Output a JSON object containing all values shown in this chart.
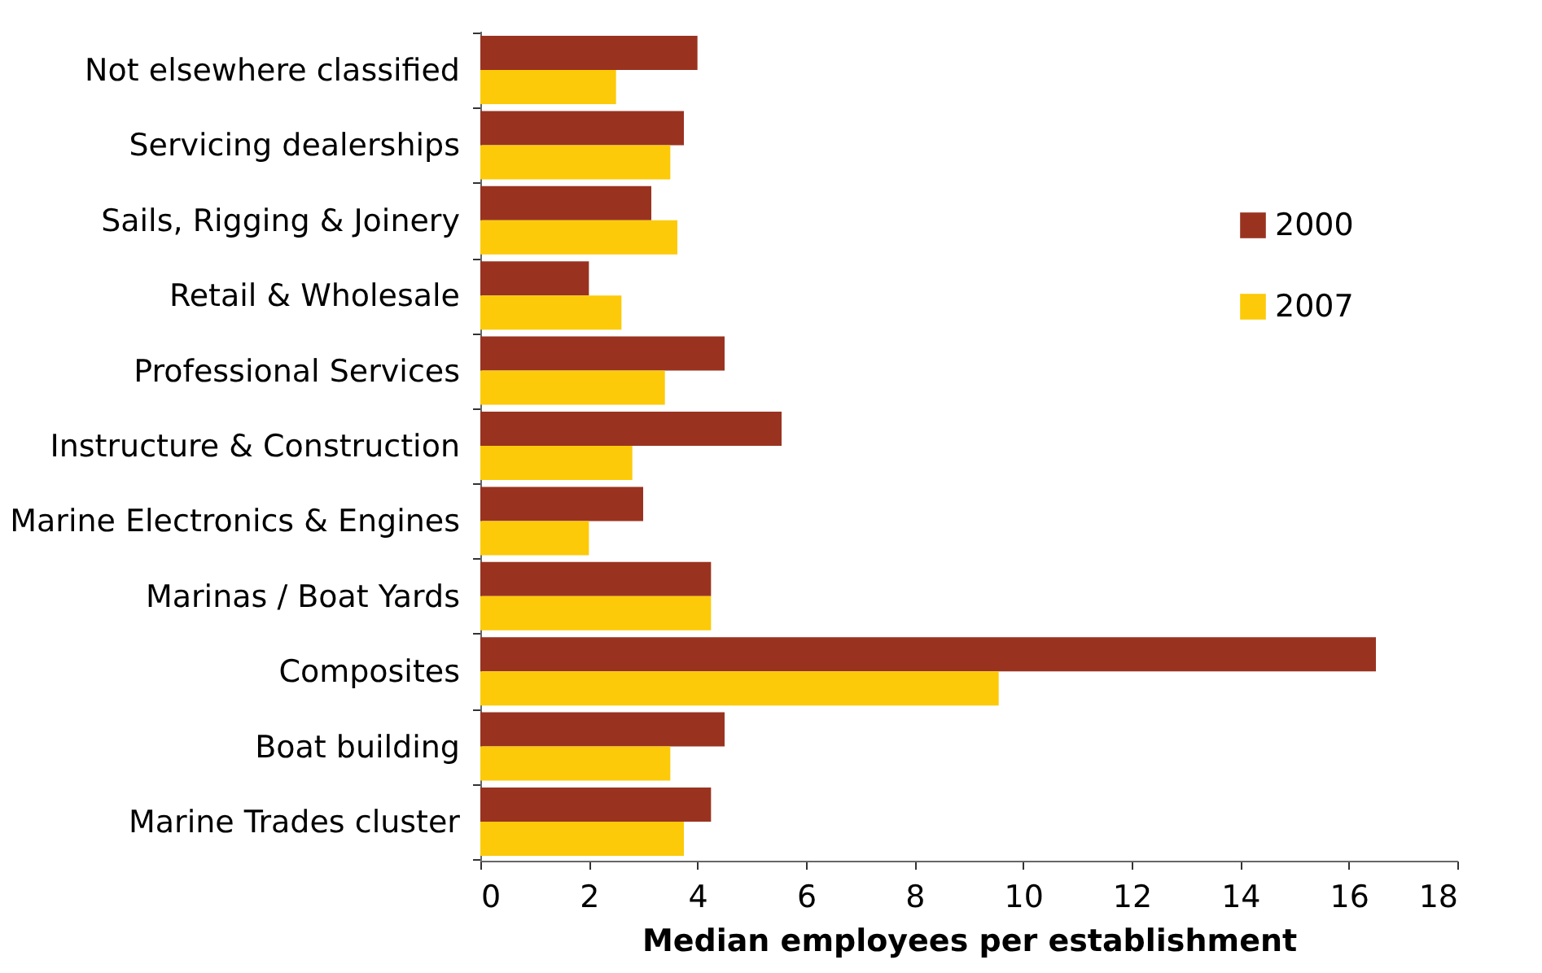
{
  "chart_data": {
    "type": "bar",
    "orientation": "horizontal",
    "xlabel": "Median employees per establishment",
    "categories": [
      "Not elsewhere classified",
      "Servicing dealerships",
      "Sails, Rigging & Joinery",
      "Retail & Wholesale",
      "Professional Services",
      "Instructure & Construction",
      "Marine Electronics & Engines",
      "Marinas / Boat Yards",
      "Composites",
      "Boat building",
      "Marine Trades cluster"
    ],
    "series": [
      {
        "name": "2000",
        "color": "#993320",
        "values": [
          4,
          3.75,
          3.15,
          2,
          4.5,
          5.55,
          3,
          4.25,
          16.5,
          4.5,
          4.25
        ]
      },
      {
        "name": "2007",
        "color": "#fcca08",
        "values": [
          2.5,
          3.5,
          3.63,
          2.6,
          3.4,
          2.8,
          2,
          4.25,
          9.55,
          3.5,
          3.75
        ]
      }
    ],
    "xlim": [
      0,
      18
    ],
    "xticks": [
      0,
      2,
      4,
      6,
      8,
      10,
      12,
      14,
      16,
      18
    ],
    "grid": false,
    "legend": "right"
  }
}
